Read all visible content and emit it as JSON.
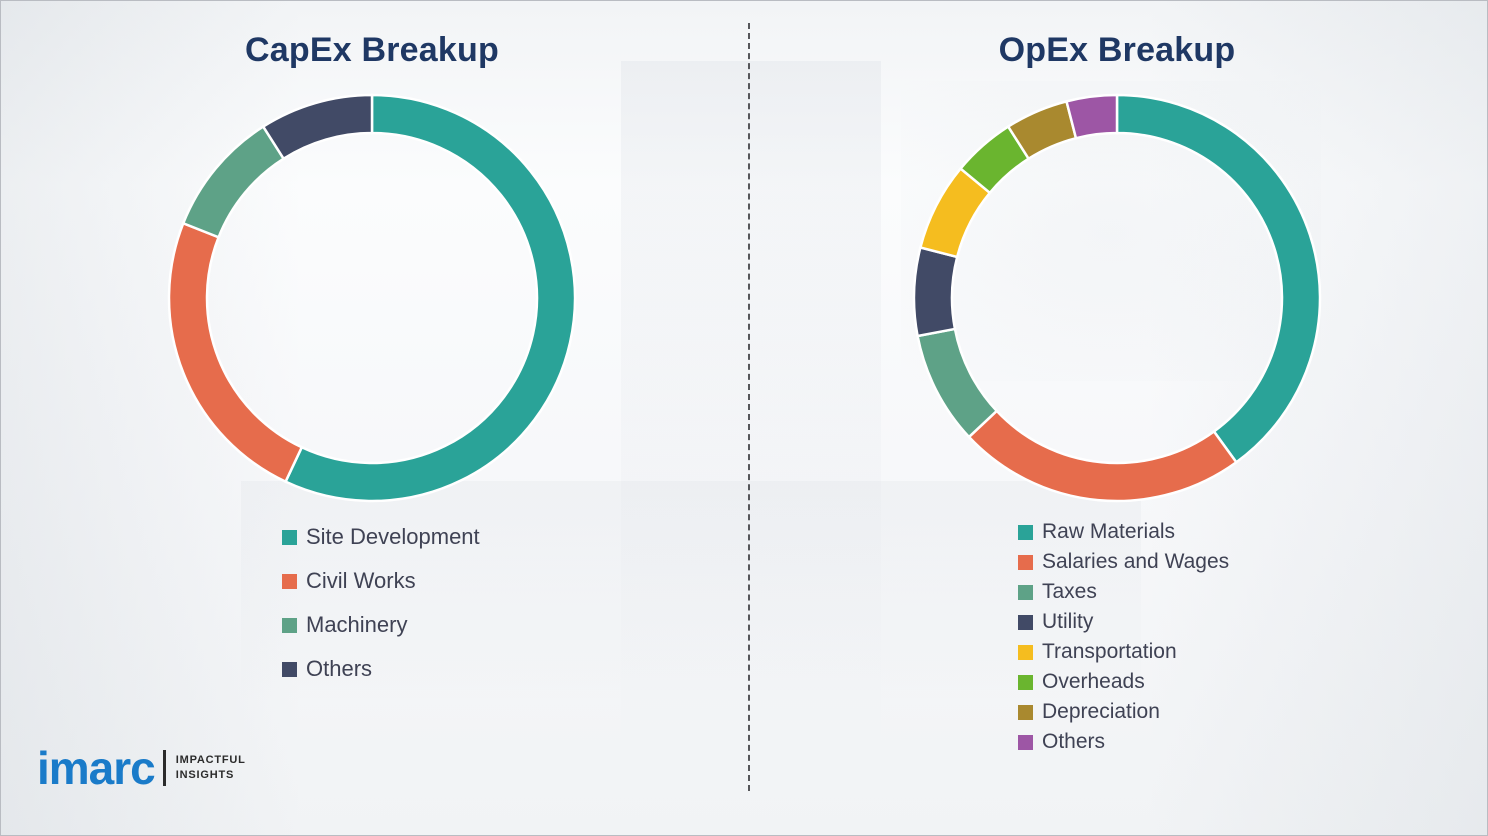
{
  "chart_data": [
    {
      "type": "pie",
      "subtype": "donut",
      "title": "CapEx Breakup",
      "labels": [
        "Site Development",
        "Civil Works",
        "Machinery",
        "Others"
      ],
      "values": [
        57,
        24,
        10,
        9
      ],
      "colors": [
        "#2aa398",
        "#e66c4c",
        "#5ea287",
        "#414a66"
      ],
      "legend_position": "bottom-left",
      "start_angle_deg": -90,
      "direction": "clockwise"
    },
    {
      "type": "pie",
      "subtype": "donut",
      "title": "OpEx Breakup",
      "labels": [
        "Raw Materials",
        "Salaries and Wages",
        "Taxes",
        "Utility",
        "Transportation",
        "Overheads",
        "Depreciation",
        "Others"
      ],
      "values": [
        40,
        23,
        9,
        7,
        7,
        5,
        5,
        4
      ],
      "colors": [
        "#2aa398",
        "#e66c4c",
        "#5ea287",
        "#414a66",
        "#f5bd1f",
        "#6ab52f",
        "#a9892f",
        "#9d56a5"
      ],
      "legend_position": "bottom-left",
      "start_angle_deg": -90,
      "direction": "clockwise"
    }
  ],
  "logo": {
    "brand": "imarc",
    "tagline_line1": "IMPACTFUL",
    "tagline_line2": "INSIGHTS"
  },
  "style": {
    "title_color": "#1f3864",
    "legend_text_color": "#3f4254",
    "divider_color": "#55565a",
    "logo_blue": "#1a7bc9",
    "segment_gap_stroke": "#ffffff"
  }
}
